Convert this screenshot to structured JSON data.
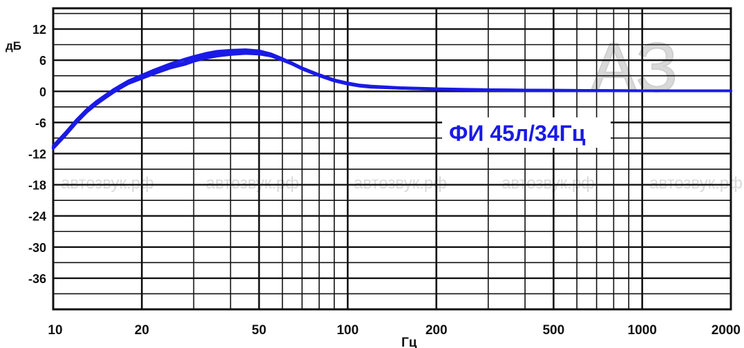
{
  "chart_data": {
    "type": "line",
    "title": "",
    "xlabel": "Гц",
    "ylabel": "дБ",
    "x_scale": "log",
    "xlim": [
      10,
      2000
    ],
    "ylim": [
      -42,
      16
    ],
    "grid": true,
    "x_ticks": [
      10,
      20,
      50,
      100,
      200,
      500,
      1000,
      2000
    ],
    "x_tick_labels": [
      "10",
      "20",
      "50",
      "100",
      "200",
      "500",
      "1000",
      "2000"
    ],
    "y_ticks": [
      12,
      6,
      0,
      -6,
      -12,
      -18,
      -24,
      -30,
      -36
    ],
    "y_tick_labels": [
      "12",
      "6",
      "0",
      "-6",
      "-12",
      "-18",
      "-24",
      "-30",
      "-36"
    ],
    "line_color": "#1a1ae6",
    "series": [
      {
        "x": [
          10,
          11,
          12,
          13,
          14,
          15,
          16,
          17,
          18,
          20,
          22,
          25,
          28,
          30,
          33,
          36,
          40,
          45,
          50,
          55,
          60,
          65,
          70,
          80,
          90,
          100,
          110,
          120,
          150,
          200,
          300,
          500,
          1000,
          2000
        ],
        "y": [
          -10.5,
          -8.0,
          -5.5,
          -3.5,
          -2.0,
          -0.8,
          0.3,
          1.2,
          2.0,
          3.1,
          4.1,
          5.3,
          6.2,
          6.7,
          7.3,
          7.7,
          7.9,
          8.0,
          7.8,
          7.2,
          6.3,
          5.4,
          4.5,
          3.2,
          2.2,
          1.6,
          1.2,
          1.0,
          0.7,
          0.5,
          0.3,
          0.2,
          0.1,
          0.1
        ]
      },
      {
        "x": [
          10,
          11,
          12,
          13,
          14,
          15,
          16,
          17,
          18,
          20,
          22,
          25,
          28,
          30,
          33,
          36,
          40,
          45,
          50,
          55,
          60,
          65,
          70,
          80,
          90,
          100,
          110,
          120,
          150,
          200,
          300,
          500,
          1000,
          2000
        ],
        "y": [
          -10.8,
          -8.3,
          -5.8,
          -3.8,
          -2.3,
          -1.1,
          0.0,
          0.9,
          1.7,
          2.8,
          3.7,
          4.8,
          5.6,
          6.2,
          6.8,
          7.2,
          7.5,
          7.6,
          7.5,
          7.0,
          6.2,
          5.3,
          4.4,
          3.1,
          2.1,
          1.5,
          1.1,
          0.9,
          0.6,
          0.4,
          0.3,
          0.2,
          0.1,
          0.1
        ]
      },
      {
        "x": [
          10,
          11,
          12,
          13,
          14,
          15,
          16,
          17,
          18,
          20,
          22,
          25,
          28,
          30,
          33,
          36,
          40,
          45,
          50,
          55,
          60,
          65,
          70,
          80,
          90,
          100,
          110,
          120,
          150,
          200,
          300,
          500,
          1000,
          2000
        ],
        "y": [
          -11.0,
          -8.5,
          -6.0,
          -4.0,
          -2.5,
          -1.3,
          -0.2,
          0.7,
          1.5,
          2.5,
          3.4,
          4.5,
          5.2,
          5.8,
          6.4,
          6.8,
          7.1,
          7.3,
          7.2,
          6.8,
          6.0,
          5.2,
          4.3,
          3.0,
          2.0,
          1.4,
          1.0,
          0.8,
          0.6,
          0.4,
          0.2,
          0.1,
          0.1,
          0.1
        ]
      }
    ],
    "annotation": "ФИ 45л/34Гц",
    "watermarks": [
      "автозвук.рф",
      "автозвук.рф",
      "автозвук.рф",
      "автозвук.рф",
      "автозвук.рф"
    ],
    "logo_text": "АЗ"
  }
}
